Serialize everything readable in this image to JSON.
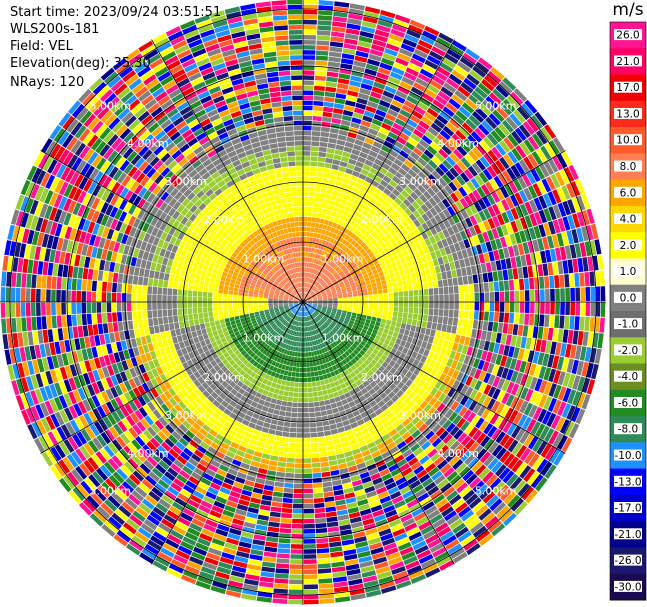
{
  "header": {
    "start_time": "Start time: 2023/09/24 03:51:51",
    "site": "WLS200s-181",
    "field": "Field: VEL",
    "elevation": "Elevation(deg): 35.30",
    "nrays": "NRays: 120"
  },
  "range_rings": {
    "ring_labels": [
      "1.00km",
      "2.00km",
      "3.00km",
      "4.00km",
      "5.00km"
    ]
  },
  "colorbar": {
    "unit": "m/s",
    "ticks": [
      "26.0",
      "21.0",
      "17.0",
      "13.0",
      "10.0",
      "8.0",
      "6.0",
      "4.0",
      "2.0",
      "1.0",
      "0.0",
      "-1.0",
      "-2.0",
      "-4.0",
      "-6.0",
      "-8.0",
      "-10.0",
      "-13.0",
      "-17.0",
      "-21.0",
      "-26.0",
      "-30.0"
    ],
    "colors": [
      "#ff1493",
      "#ff0066",
      "#f00000",
      "#ff2a1a",
      "#ff5a2a",
      "#ff7f50",
      "#ffa500",
      "#ffd700",
      "#ffff00",
      "#fffdd0",
      "#808080",
      "#6e6e6e",
      "#9acd32",
      "#6b8e23",
      "#228b22",
      "#2e8b57",
      "#1e90ff",
      "#0000ff",
      "#0000cd",
      "#00008b",
      "#191970",
      "#1c0a50"
    ]
  },
  "ppi_palette": {
    "inner_north": "#ff7f50",
    "mid_north": "#ffa500",
    "outer_north": "#ffff00",
    "green_band": "#9acd32",
    "gray_band": "#808080",
    "inner_south_1": "#228b22",
    "inner_south_2": "#2e8b57",
    "center_blue": "#1e90ff",
    "noise": [
      "#ff1493",
      "#ff0066",
      "#f00000",
      "#ff5a2a",
      "#ffa500",
      "#ffff00",
      "#9acd32",
      "#228b22",
      "#2e8b57",
      "#0000ff",
      "#00008b",
      "#191970",
      "#808080",
      "#1e90ff"
    ]
  }
}
